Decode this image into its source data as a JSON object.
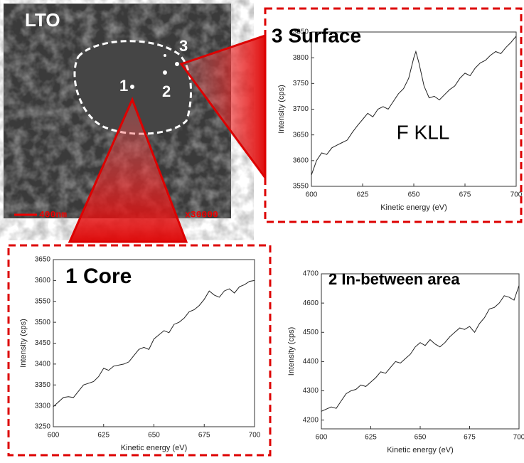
{
  "image": {
    "material": "LTO",
    "points": [
      "1",
      "2",
      "3"
    ],
    "scale_bar": "400nm",
    "magnification": "x30000"
  },
  "chart_data": [
    {
      "type": "line",
      "title": "3 Surface",
      "annotations": [
        "F KLL"
      ],
      "xlabel": "Kinetic energy (eV)",
      "ylabel": "Intensity (cps)",
      "x": [
        600,
        602.5,
        605,
        607.5,
        610,
        612.5,
        615,
        617.5,
        620,
        622.5,
        625,
        627.5,
        630,
        632.5,
        635,
        637.5,
        640,
        642.5,
        645,
        647.5,
        650,
        651,
        652.5,
        655,
        657.5,
        660,
        662.5,
        665,
        667.5,
        670,
        672.5,
        675,
        677.5,
        680,
        682.5,
        685,
        687.5,
        690,
        692.5,
        695,
        697.5,
        700
      ],
      "series": [
        {
          "color": "#222222",
          "values": [
            3572,
            3600,
            3615,
            3612,
            3625,
            3630,
            3635,
            3640,
            3655,
            3668,
            3680,
            3692,
            3685,
            3700,
            3705,
            3700,
            3715,
            3730,
            3740,
            3760,
            3800,
            3812,
            3790,
            3745,
            3722,
            3725,
            3718,
            3728,
            3738,
            3745,
            3760,
            3770,
            3765,
            3780,
            3790,
            3795,
            3805,
            3812,
            3808,
            3820,
            3830,
            3842
          ]
        }
      ],
      "xlim": [
        600,
        700
      ],
      "xticks": [
        600,
        625,
        650,
        675,
        700
      ],
      "ylim": [
        3550,
        3850
      ],
      "yticks": [
        3550,
        3600,
        3650,
        3700,
        3750,
        3800,
        3850
      ]
    },
    {
      "type": "line",
      "title": "1 Core",
      "xlabel": "Kinetic energy (eV)",
      "ylabel": "Intensity (cps)",
      "x": [
        600,
        605,
        607.5,
        610,
        612.5,
        615,
        620,
        622.5,
        625,
        627.5,
        630,
        635,
        637.5,
        640,
        642.5,
        645,
        647.5,
        650,
        652.5,
        655,
        657.5,
        660,
        662.5,
        665,
        667.5,
        670,
        672.5,
        675,
        677.5,
        680,
        682.5,
        685,
        687.5,
        690,
        692.5,
        695,
        697.5,
        700
      ],
      "series": [
        {
          "color": "#222222",
          "values": [
            3298,
            3320,
            3322,
            3320,
            3335,
            3350,
            3358,
            3370,
            3390,
            3385,
            3395,
            3400,
            3405,
            3420,
            3435,
            3440,
            3435,
            3460,
            3470,
            3480,
            3475,
            3495,
            3500,
            3510,
            3525,
            3530,
            3540,
            3555,
            3575,
            3565,
            3560,
            3575,
            3580,
            3570,
            3585,
            3590,
            3598,
            3600
          ]
        }
      ],
      "xlim": [
        600,
        700
      ],
      "xticks": [
        600,
        625,
        650,
        675,
        700
      ],
      "ylim": [
        3250,
        3650
      ],
      "yticks": [
        3250,
        3300,
        3350,
        3400,
        3450,
        3500,
        3550,
        3600,
        3650
      ]
    },
    {
      "type": "line",
      "title": "2 In-between area",
      "xlabel": "Kinetic energy (eV)",
      "ylabel": "Intensity (cps)",
      "x": [
        600,
        605,
        607.5,
        610,
        612.5,
        615,
        617.5,
        620,
        622.5,
        625,
        627.5,
        630,
        632.5,
        635,
        637.5,
        640,
        642.5,
        645,
        647.5,
        650,
        652.5,
        655,
        657.5,
        660,
        662.5,
        665,
        667.5,
        670,
        672.5,
        675,
        677.5,
        680,
        682.5,
        685,
        687.5,
        690,
        692.5,
        695,
        697.5,
        700
      ],
      "series": [
        {
          "color": "#222222",
          "values": [
            4230,
            4245,
            4240,
            4265,
            4290,
            4300,
            4305,
            4320,
            4315,
            4330,
            4345,
            4365,
            4360,
            4380,
            4400,
            4395,
            4410,
            4425,
            4450,
            4465,
            4455,
            4475,
            4460,
            4450,
            4465,
            4485,
            4500,
            4515,
            4510,
            4520,
            4500,
            4530,
            4550,
            4580,
            4585,
            4600,
            4625,
            4620,
            4610,
            4660
          ]
        }
      ],
      "xlim": [
        600,
        700
      ],
      "xticks": [
        600,
        625,
        650,
        675,
        700
      ],
      "ylim": [
        4170,
        4700
      ],
      "yticks": [
        4200,
        4300,
        4400,
        4500,
        4600,
        4700
      ]
    }
  ]
}
